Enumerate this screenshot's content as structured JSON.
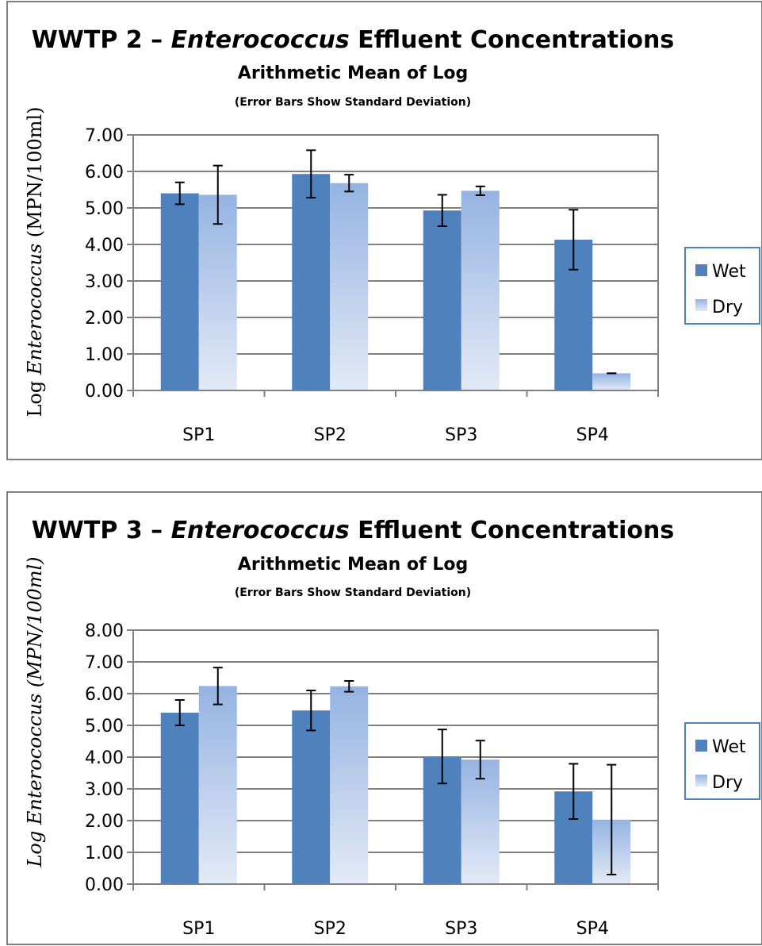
{
  "chart_data": [
    {
      "type": "bar",
      "title_prefix": "WWTP 2 – ",
      "title_italic": "Enterococcus",
      "title_suffix": " Effluent Concentrations",
      "subtitle": "Arithmetic Mean of Log",
      "note": "(Error Bars Show Standard Deviation)",
      "ylabel_prefix": "Log ",
      "ylabel_italic": "Enterococcus",
      "ylabel_suffix": " (MPN/100ml)",
      "ylabel_all_italic": false,
      "categories": [
        "SP1",
        "SP2",
        "SP3",
        "SP4"
      ],
      "ylim": [
        0,
        7
      ],
      "yticks": [
        "0.00",
        "1.00",
        "2.00",
        "3.00",
        "4.00",
        "5.00",
        "6.00",
        "7.00"
      ],
      "grid": true,
      "legend_position": "right",
      "series": [
        {
          "name": "Wet",
          "values": [
            5.4,
            5.93,
            4.93,
            4.13
          ],
          "error": [
            0.3,
            0.65,
            0.43,
            0.82
          ]
        },
        {
          "name": "Dry",
          "values": [
            5.36,
            5.68,
            5.47,
            0.47
          ],
          "error": [
            0.8,
            0.23,
            0.12,
            0.0
          ]
        }
      ]
    },
    {
      "type": "bar",
      "title_prefix": "WWTP 3 – ",
      "title_italic": "Enterococcus",
      "title_suffix": " Effluent Concentrations",
      "subtitle": "Arithmetic Mean of Log",
      "note": "(Error Bars Show Standard Deviation)",
      "ylabel_prefix": "Log ",
      "ylabel_italic": "Enterococcus",
      "ylabel_suffix": " (MPN/100ml)",
      "ylabel_all_italic": true,
      "categories": [
        "SP1",
        "SP2",
        "SP3",
        "SP4"
      ],
      "ylim": [
        0,
        8
      ],
      "yticks": [
        "0.00",
        "1.00",
        "2.00",
        "3.00",
        "4.00",
        "5.00",
        "6.00",
        "7.00",
        "8.00"
      ],
      "grid": true,
      "legend_position": "right",
      "series": [
        {
          "name": "Wet",
          "values": [
            5.4,
            5.47,
            4.02,
            2.92
          ],
          "error": [
            0.4,
            0.63,
            0.85,
            0.87
          ]
        },
        {
          "name": "Dry",
          "values": [
            6.24,
            6.23,
            3.92,
            2.03
          ],
          "error": [
            0.58,
            0.17,
            0.6,
            1.73
          ]
        }
      ]
    }
  ],
  "colors": {
    "wet": "#4f81bd",
    "dry_top": "#95b3e2",
    "dry_bottom": "#e3eaf6",
    "frame": "#808080",
    "legend_border": "#4f81bd"
  }
}
